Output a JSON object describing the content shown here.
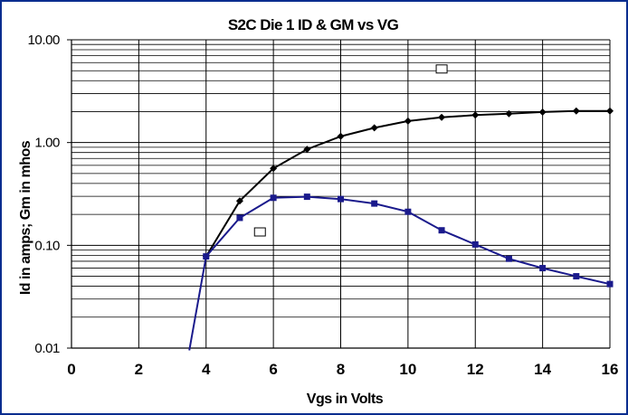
{
  "chart_data": {
    "type": "line",
    "title": "S2C Die 1  ID & GM vs VG",
    "xlabel": "Vgs  in Volts",
    "ylabel": "Id in amps;  Gm in mhos",
    "xlim": [
      0,
      16
    ],
    "ylim": [
      0.01,
      10
    ],
    "yscale": "log",
    "grid": true,
    "xticks": [
      "0",
      "2",
      "4",
      "6",
      "8",
      "10",
      "12",
      "14",
      "16"
    ],
    "yticks": [
      "0.01",
      "0.10",
      "1.00",
      "10.00"
    ],
    "series": [
      {
        "color": "#000000",
        "marker": "diamond",
        "x": [
          4,
          5,
          6,
          7,
          8,
          9,
          10,
          11,
          12,
          13,
          14,
          15,
          16
        ],
        "y": [
          0.078,
          0.27,
          0.56,
          0.86,
          1.15,
          1.39,
          1.62,
          1.76,
          1.85,
          1.91,
          1.98,
          2.03,
          2.03
        ]
      },
      {
        "color": "#1a1a8c",
        "marker": "square",
        "x": [
          3.5,
          4,
          5,
          6,
          7,
          8,
          9,
          10,
          11,
          12,
          13,
          14,
          15,
          16
        ],
        "y": [
          0.0095,
          0.078,
          0.185,
          0.29,
          0.297,
          0.282,
          0.255,
          0.212,
          0.14,
          0.102,
          0.074,
          0.06,
          0.05,
          0.042
        ]
      }
    ],
    "legend_boxes": [
      {
        "x": 11,
        "y": 5.2
      },
      {
        "x": 5.6,
        "y": 0.135
      }
    ]
  }
}
